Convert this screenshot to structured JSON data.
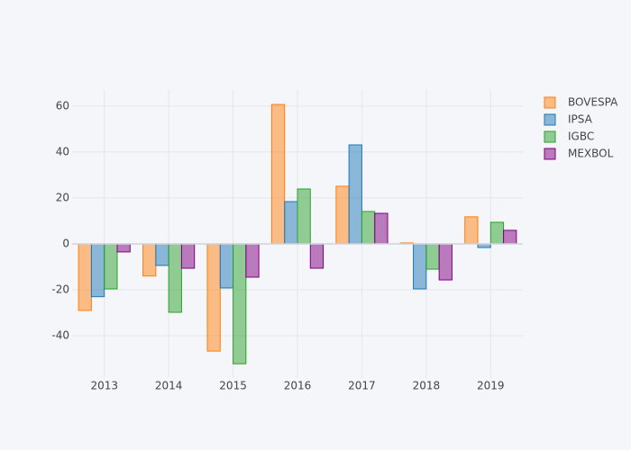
{
  "chart_data": {
    "type": "bar",
    "categories": [
      "2013",
      "2014",
      "2015",
      "2016",
      "2017",
      "2018",
      "2019"
    ],
    "series": [
      {
        "name": "BOVESPA",
        "color": "#ff7f0e",
        "values": [
          -29,
          -14,
          -46.7,
          60.7,
          25.1,
          0.4,
          11.8
        ]
      },
      {
        "name": "IPSA",
        "color": "#1f77b4",
        "values": [
          -23,
          -9.4,
          -19.2,
          18.4,
          43.1,
          -19.6,
          -1.6
        ]
      },
      {
        "name": "IGBC",
        "color": "#2ca02c",
        "values": [
          -19.6,
          -29.8,
          -52.2,
          23.9,
          14.1,
          -11,
          9.4
        ]
      },
      {
        "name": "MEXBOL",
        "color": "#800080",
        "values": [
          -3.5,
          -10.6,
          -14.5,
          -10.6,
          13.3,
          -15.7,
          5.9
        ]
      }
    ],
    "ylim": [
      -58.4,
      67
    ],
    "yticks": [
      -40,
      -20,
      0,
      20,
      40,
      60
    ],
    "grid": true
  }
}
